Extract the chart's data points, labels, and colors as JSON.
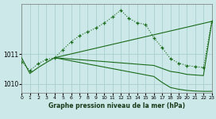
{
  "xlabel": "Graphe pression niveau de la mer (hPa)",
  "bg_color": "#cce8e8",
  "grid_color": "#aacece",
  "line_color": "#1a6b1a",
  "xlim": [
    0,
    23
  ],
  "ylim": [
    1009.7,
    1012.7
  ],
  "yticks": [
    1010,
    1011
  ],
  "xticks": [
    0,
    1,
    2,
    3,
    4,
    5,
    6,
    7,
    8,
    9,
    10,
    11,
    12,
    13,
    14,
    15,
    16,
    17,
    18,
    19,
    20,
    21,
    22,
    23
  ],
  "lines": {
    "dotted_with_markers": {
      "x": [
        0,
        1,
        2,
        3,
        4,
        5,
        6,
        7,
        8,
        9,
        10,
        11,
        12,
        13,
        14,
        15,
        16,
        17,
        18,
        19,
        20,
        21,
        22,
        23
      ],
      "y": [
        1010.75,
        1010.45,
        1010.68,
        1010.82,
        1010.88,
        1011.15,
        1011.42,
        1011.62,
        1011.75,
        1011.88,
        1012.05,
        1012.25,
        1012.48,
        1012.2,
        1012.05,
        1012.0,
        1011.55,
        1011.22,
        1010.85,
        1010.7,
        1010.62,
        1010.58,
        1010.55,
        1012.1
      ]
    },
    "upper_solid": {
      "x": [
        4,
        23
      ],
      "y": [
        1010.88,
        1012.1
      ]
    },
    "mid_solid": {
      "x": [
        4,
        16,
        17,
        18,
        19,
        20,
        21,
        22,
        23
      ],
      "y": [
        1010.88,
        1010.62,
        1010.52,
        1010.42,
        1010.38,
        1010.32,
        1010.3,
        1010.28,
        1012.05
      ]
    },
    "lower_solid": {
      "x": [
        4,
        16,
        17,
        18,
        19,
        20,
        21,
        22,
        23
      ],
      "y": [
        1010.88,
        1010.25,
        1010.05,
        1009.88,
        1009.82,
        1009.78,
        1009.76,
        1009.75,
        1009.75
      ]
    },
    "left_segment": {
      "x": [
        0,
        1,
        2,
        3,
        4
      ],
      "y": [
        1010.88,
        1010.35,
        1010.55,
        1010.72,
        1010.88
      ]
    }
  }
}
